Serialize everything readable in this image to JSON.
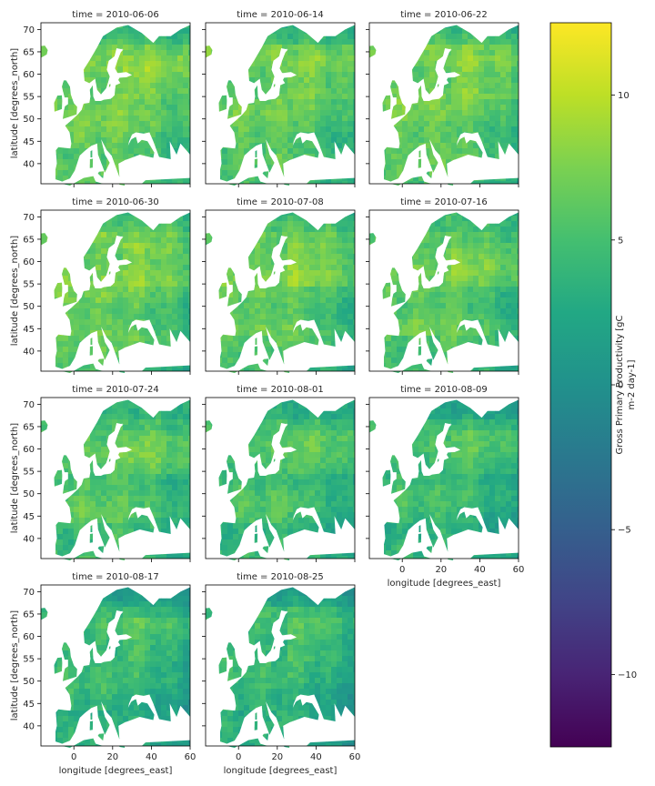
{
  "chart_data": {
    "type": "heatmap",
    "layout": {
      "columns": 3,
      "rows": 4
    },
    "xlabel": "longitude [degrees_east]",
    "ylabel": "latitude [degrees_north]",
    "xlim": [
      -17,
      60
    ],
    "ylim": [
      35.5,
      71.5
    ],
    "xticks": [
      0,
      20,
      40,
      60
    ],
    "xtick_labels": [
      "0",
      "20",
      "40",
      "60"
    ],
    "yticks": [
      40,
      45,
      50,
      55,
      60,
      65,
      70
    ],
    "ytick_labels": [
      "40",
      "45",
      "50",
      "55",
      "60",
      "65",
      "70"
    ],
    "colorbar": {
      "label_lines": [
        "Gross Primary Productivity [gC",
        "m-2 day-1]"
      ],
      "colormap": "viridis",
      "vmin": -12.5,
      "vmax": 12.5,
      "ticks": [
        -10,
        -5,
        0,
        5,
        10
      ],
      "tick_labels": [
        "−10",
        "−5",
        "0",
        "5",
        "10"
      ]
    },
    "panels": [
      {
        "title": "time = 2010-06-06",
        "mean_gpp": 7.0
      },
      {
        "title": "time = 2010-06-14",
        "mean_gpp": 6.5
      },
      {
        "title": "time = 2010-06-22",
        "mean_gpp": 6.8
      },
      {
        "title": "time = 2010-06-30",
        "mean_gpp": 6.9
      },
      {
        "title": "time = 2010-07-08",
        "mean_gpp": 6.6
      },
      {
        "title": "time = 2010-07-16",
        "mean_gpp": 6.3
      },
      {
        "title": "time = 2010-07-24",
        "mean_gpp": 5.8
      },
      {
        "title": "time = 2010-08-01",
        "mean_gpp": 5.2
      },
      {
        "title": "time = 2010-08-09",
        "mean_gpp": 4.6
      },
      {
        "title": "time = 2010-08-17",
        "mean_gpp": 4.3
      },
      {
        "title": "time = 2010-08-25",
        "mean_gpp": 4.2
      }
    ],
    "grid": false,
    "legend": "colorbar-right"
  }
}
